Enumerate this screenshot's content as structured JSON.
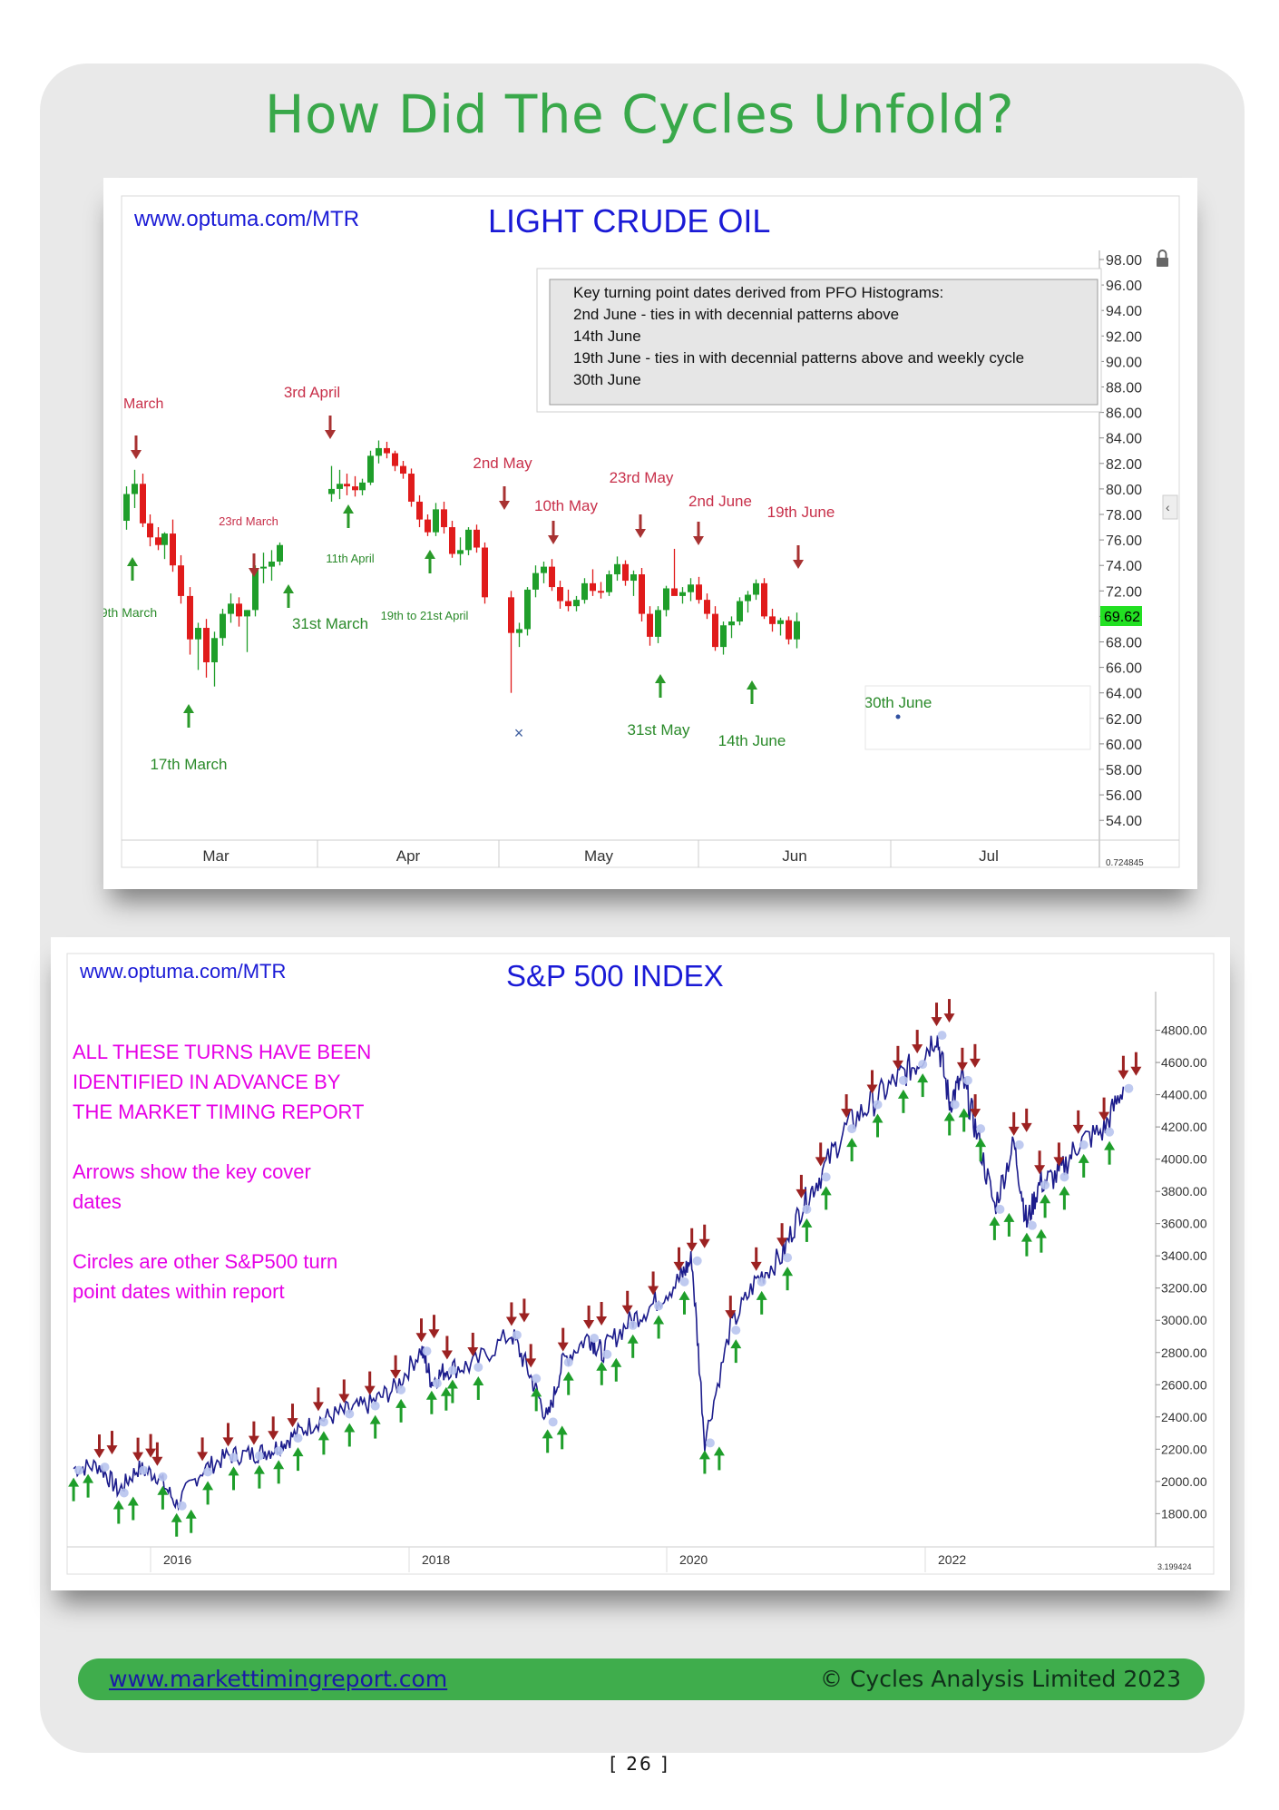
{
  "page": {
    "title": "How Did The Cycles Unfold?",
    "page_number": "[ 26 ]"
  },
  "footer": {
    "link": "www.markettimingreport.com",
    "copyright": "© Cycles Analysis Limited 2023"
  },
  "chart_data": [
    {
      "type": "candlestick",
      "watermark": "www.optuma.com/MTR",
      "title": "LIGHT CRUDE OIL",
      "ylim": [
        53,
        99
      ],
      "y_ticks": [
        "98.00",
        "96.00",
        "94.00",
        "92.00",
        "90.00",
        "88.00",
        "86.00",
        "84.00",
        "82.00",
        "80.00",
        "78.00",
        "76.00",
        "74.00",
        "72.00",
        "70.00",
        "68.00",
        "66.00",
        "64.00",
        "62.00",
        "60.00",
        "58.00",
        "56.00",
        "54.00"
      ],
      "x_labels": [
        "Mar",
        "Apr",
        "May",
        "Jun",
        "Jul"
      ],
      "last_price": "69.62",
      "corner_readout": "0.724845",
      "info_box": [
        "Key turning point dates derived from PFO Histograms:",
        "2nd June - ties in with decennial patterns above",
        "14th June",
        "19th June - ties in with decennial patterns above and weekly cycle",
        "30th June"
      ],
      "annotations": [
        {
          "label": "March",
          "direction": "down",
          "color": "#c8304a"
        },
        {
          "label": "3rd April",
          "direction": "down",
          "color": "#c8304a"
        },
        {
          "label": "23rd March",
          "direction": "down",
          "color": "#c8304a"
        },
        {
          "label": "2nd May",
          "direction": "down",
          "color": "#c8304a"
        },
        {
          "label": "10th May",
          "direction": "down",
          "color": "#c8304a"
        },
        {
          "label": "23rd May",
          "direction": "down",
          "color": "#c8304a"
        },
        {
          "label": "2nd June",
          "direction": "down",
          "color": "#c8304a"
        },
        {
          "label": "19th June",
          "direction": "down",
          "color": "#c8304a"
        },
        {
          "label": "9th March",
          "direction": "up",
          "color": "#2a8a2a"
        },
        {
          "label": "17th March",
          "direction": "up",
          "color": "#2a8a2a"
        },
        {
          "label": "11th April",
          "direction": "up",
          "color": "#2a8a2a"
        },
        {
          "label": "31st March",
          "direction": "up",
          "color": "#2a8a2a"
        },
        {
          "label": "19th to 21st April",
          "direction": "up",
          "color": "#2a8a2a"
        },
        {
          "label": "31st May",
          "direction": "up",
          "color": "#2a8a2a"
        },
        {
          "label": "14th June",
          "direction": "up",
          "color": "#2a8a2a"
        },
        {
          "label": "30th June",
          "direction": "up",
          "color": "#2a8a2a"
        }
      ],
      "candles": [
        [
          77.5,
          80.2,
          76.8,
          79.6
        ],
        [
          79.6,
          81.5,
          78.5,
          80.4
        ],
        [
          80.4,
          81.2,
          77.0,
          77.3
        ],
        [
          77.3,
          78.0,
          75.5,
          76.2
        ],
        [
          76.2,
          77.0,
          75.2,
          75.6
        ],
        [
          75.6,
          76.6,
          74.5,
          76.5
        ],
        [
          76.5,
          77.6,
          73.5,
          74.0
        ],
        [
          74.0,
          74.8,
          71.0,
          71.6
        ],
        [
          71.6,
          72.3,
          67.0,
          68.2
        ],
        [
          68.2,
          69.5,
          65.8,
          69.1
        ],
        [
          69.1,
          69.8,
          65.2,
          66.4
        ],
        [
          66.4,
          68.8,
          64.5,
          68.3
        ],
        [
          68.3,
          70.6,
          67.7,
          70.2
        ],
        [
          70.2,
          71.8,
          69.5,
          71.0
        ],
        [
          71.0,
          71.5,
          69.2,
          70.0
        ],
        [
          70.0,
          70.5,
          67.2,
          70.5
        ],
        [
          70.5,
          74.0,
          70.0,
          73.8
        ],
        [
          73.8,
          75.0,
          72.6,
          73.9
        ],
        [
          73.9,
          75.2,
          72.8,
          74.3
        ],
        [
          74.3,
          75.8,
          74.0,
          75.6
        ],
        [
          79.6,
          81.8,
          79.0,
          80.0
        ],
        [
          80.0,
          81.5,
          79.2,
          80.4
        ],
        [
          80.4,
          81.2,
          79.5,
          80.2
        ],
        [
          80.2,
          81.0,
          79.4,
          79.9
        ],
        [
          79.9,
          80.8,
          79.5,
          80.5
        ],
        [
          80.5,
          83.0,
          80.3,
          82.6
        ],
        [
          82.6,
          83.8,
          82.0,
          83.2
        ],
        [
          83.2,
          83.7,
          82.4,
          82.8
        ],
        [
          82.8,
          83.0,
          81.4,
          81.8
        ],
        [
          81.8,
          82.2,
          80.8,
          81.2
        ],
        [
          81.2,
          81.6,
          78.6,
          79.0
        ],
        [
          79.0,
          79.5,
          77.0,
          77.6
        ],
        [
          77.6,
          78.0,
          76.3,
          76.6
        ],
        [
          76.6,
          78.9,
          76.3,
          78.4
        ],
        [
          78.4,
          79.0,
          76.5,
          77.0
        ],
        [
          77.0,
          77.5,
          74.6,
          74.9
        ],
        [
          74.9,
          76.2,
          74.0,
          75.2
        ],
        [
          75.2,
          77.0,
          74.8,
          76.8
        ],
        [
          76.8,
          77.2,
          75.0,
          75.4
        ],
        [
          75.4,
          75.8,
          71.0,
          71.5
        ],
        [
          71.5,
          72.0,
          64.0,
          68.7
        ],
        [
          68.7,
          69.5,
          67.6,
          69.0
        ],
        [
          69.0,
          72.3,
          68.5,
          72.1
        ],
        [
          72.1,
          74.0,
          71.5,
          73.4
        ],
        [
          73.4,
          74.3,
          72.6,
          73.9
        ],
        [
          73.9,
          74.5,
          72.0,
          72.3
        ],
        [
          72.3,
          72.8,
          70.6,
          71.2
        ],
        [
          71.2,
          72.1,
          70.4,
          70.8
        ],
        [
          70.8,
          71.6,
          70.4,
          71.3
        ],
        [
          71.3,
          73.0,
          71.0,
          72.6
        ],
        [
          72.6,
          73.7,
          71.6,
          72.0
        ],
        [
          72.0,
          72.7,
          71.4,
          71.9
        ],
        [
          71.9,
          73.6,
          71.6,
          73.3
        ],
        [
          73.3,
          74.7,
          72.8,
          74.1
        ],
        [
          74.1,
          74.4,
          72.4,
          72.8
        ],
        [
          72.8,
          73.6,
          71.6,
          73.3
        ],
        [
          73.3,
          73.8,
          69.6,
          70.2
        ],
        [
          70.2,
          70.8,
          67.7,
          68.4
        ],
        [
          68.4,
          70.8,
          67.9,
          70.5
        ],
        [
          70.5,
          72.4,
          70.0,
          72.2
        ],
        [
          72.2,
          75.3,
          71.8,
          71.6
        ],
        [
          71.6,
          72.3,
          71.0,
          71.9
        ],
        [
          71.9,
          73.0,
          71.2,
          72.5
        ],
        [
          72.5,
          73.1,
          71.0,
          71.3
        ],
        [
          71.3,
          71.8,
          69.8,
          70.2
        ],
        [
          70.2,
          70.8,
          67.3,
          67.6
        ],
        [
          67.6,
          69.6,
          67.0,
          69.3
        ],
        [
          69.3,
          70.0,
          68.3,
          69.6
        ],
        [
          69.6,
          71.5,
          69.3,
          71.2
        ],
        [
          71.2,
          72.0,
          70.3,
          71.7
        ],
        [
          71.7,
          72.9,
          71.3,
          72.6
        ],
        [
          72.6,
          73.0,
          69.8,
          70.0
        ],
        [
          70.0,
          70.6,
          68.8,
          69.4
        ],
        [
          69.4,
          69.9,
          68.5,
          69.7
        ],
        [
          69.7,
          70.0,
          67.8,
          68.2
        ],
        [
          68.2,
          70.3,
          67.5,
          69.62
        ]
      ]
    },
    {
      "type": "line",
      "watermark": "www.optuma.com/MTR",
      "title": "S&P 500 INDEX",
      "notes": [
        "ALL THESE TURNS HAVE BEEN",
        "IDENTIFIED IN ADVANCE BY",
        "THE MARKET TIMING REPORT",
        "",
        "Arrows show the key cover",
        "dates",
        "",
        "Circles are other S&P500 turn",
        "point dates within report"
      ],
      "ylim": [
        1650,
        5000
      ],
      "y_ticks": [
        "4800.00",
        "4600.00",
        "4400.00",
        "4200.00",
        "4000.00",
        "3800.00",
        "3600.00",
        "3400.00",
        "3200.00",
        "3000.00",
        "2800.00",
        "2600.00",
        "2400.00",
        "2200.00",
        "2000.00",
        "1800.00"
      ],
      "x_labels": [
        "2016",
        "2018",
        "2020",
        "2022"
      ],
      "corner_readout": "3.199424",
      "series": [
        {
          "x": [
            2015.3,
            2015.5,
            2015.65,
            2015.8,
            2015.95,
            2016.1,
            2016.3,
            2016.5,
            2016.7,
            2016.85,
            2017.0,
            2017.2,
            2017.4,
            2017.6,
            2017.8,
            2018.0,
            2018.08,
            2018.2,
            2018.4,
            2018.7,
            2018.85,
            2018.98,
            2019.1,
            2019.3,
            2019.4,
            2019.6,
            2019.8,
            2020.0,
            2020.1,
            2020.2,
            2020.4,
            2020.6,
            2020.8,
            2020.95,
            2021.1,
            2021.3,
            2021.5,
            2021.7,
            2021.85,
            2022.0,
            2022.1,
            2022.2,
            2022.3,
            2022.45,
            2022.6,
            2022.7,
            2022.8,
            2022.95,
            2023.1,
            2023.3,
            2023.45
          ],
          "y": [
            2080,
            2100,
            1940,
            2080,
            2040,
            1860,
            2070,
            2160,
            2170,
            2200,
            2280,
            2380,
            2430,
            2480,
            2580,
            2820,
            2620,
            2700,
            2720,
            2920,
            2650,
            2380,
            2750,
            2900,
            2800,
            2980,
            3100,
            3250,
            3380,
            2250,
            2950,
            3250,
            3400,
            3700,
            3900,
            4200,
            4350,
            4500,
            4600,
            4780,
            4350,
            4500,
            4200,
            3700,
            4100,
            3600,
            3850,
            3900,
            4100,
            4180,
            4450
          ]
        }
      ]
    }
  ]
}
